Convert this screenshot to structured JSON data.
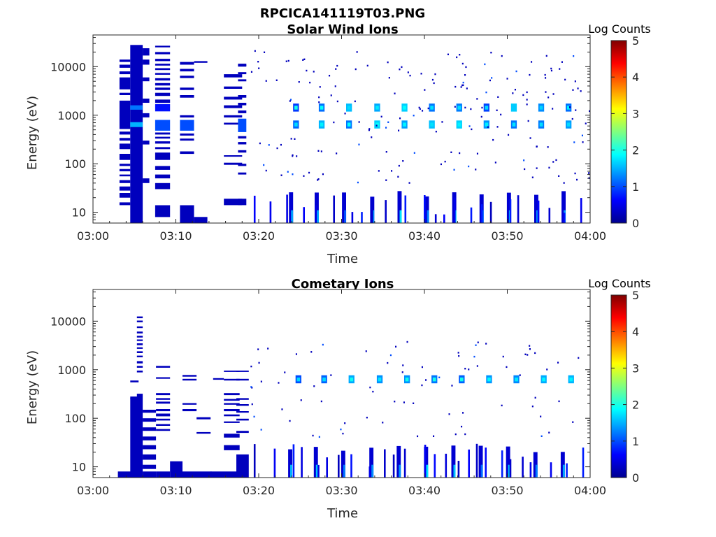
{
  "figure_title": "RPCICA141119T03.PNG",
  "chart_data": [
    {
      "type": "heatmap",
      "title": "Solar Wind Ions",
      "xlabel": "Time",
      "ylabel": "Energy (eV)",
      "xticks": [
        "03:00",
        "03:10",
        "03:20",
        "03:30",
        "03:40",
        "03:50",
        "04:00"
      ],
      "xlim_minutes": [
        0,
        60
      ],
      "yscale": "log",
      "ylim": [
        6,
        45000
      ],
      "yticks": [
        {
          "value": 10,
          "label": "10"
        },
        {
          "value": 100,
          "label": "100"
        },
        {
          "value": 1000,
          "label": "1000"
        },
        {
          "value": 10000,
          "label": "10000"
        }
      ],
      "colorbar": {
        "label": "Log Counts",
        "range": [
          0,
          5
        ],
        "ticks": [
          "0",
          "1",
          "2",
          "3",
          "4",
          "5"
        ],
        "colormap": "jet"
      },
      "cells": [
        [
          3.2,
          4.5,
          14,
          16,
          0.3
        ],
        [
          3.2,
          4.5,
          20,
          25,
          0.3
        ],
        [
          3.2,
          4.5,
          28,
          34,
          0.3
        ],
        [
          3.2,
          4.5,
          40,
          46,
          0.3
        ],
        [
          3.2,
          4.5,
          55,
          60,
          0.3
        ],
        [
          3.2,
          4.5,
          70,
          78,
          0.3
        ],
        [
          3.2,
          4.5,
          90,
          100,
          0.3
        ],
        [
          3.2,
          4.5,
          120,
          160,
          0.3
        ],
        [
          3.2,
          4.5,
          200,
          260,
          0.3
        ],
        [
          3.2,
          4.5,
          300,
          340,
          0.3
        ],
        [
          3.2,
          4.5,
          400,
          460,
          0.3
        ],
        [
          3.2,
          4.5,
          520,
          2000,
          0.3
        ],
        [
          3.2,
          4.5,
          2600,
          2900,
          0.3
        ],
        [
          3.2,
          4.5,
          3400,
          6000,
          0.3
        ],
        [
          3.2,
          4.5,
          7000,
          8000,
          0.3
        ],
        [
          3.2,
          4.5,
          9500,
          11000,
          0.3
        ],
        [
          3.2,
          4.5,
          12500,
          14000,
          0.3
        ],
        [
          4.5,
          6.0,
          6,
          28000,
          0.3
        ],
        [
          4.5,
          6.0,
          1300,
          1600,
          1.2
        ],
        [
          4.5,
          6.0,
          570,
          720,
          1.5
        ],
        [
          6.0,
          6.8,
          17000,
          24000,
          0.3
        ],
        [
          6.0,
          6.8,
          11000,
          14000,
          0.3
        ],
        [
          6.0,
          6.8,
          5000,
          6000,
          0.3
        ],
        [
          6.0,
          6.8,
          1800,
          2200,
          0.3
        ],
        [
          6.0,
          6.8,
          900,
          1100,
          0.3
        ],
        [
          6.0,
          6.8,
          250,
          300,
          0.3
        ],
        [
          6.0,
          6.8,
          40,
          50,
          0.3
        ],
        [
          7.5,
          9.3,
          25000,
          27000,
          0.3
        ],
        [
          7.5,
          9.3,
          18000,
          20000,
          0.3
        ],
        [
          7.5,
          9.3,
          13000,
          14500,
          0.3
        ],
        [
          7.5,
          9.3,
          10500,
          11500,
          0.3
        ],
        [
          7.5,
          9.3,
          8500,
          9300,
          0.3
        ],
        [
          7.5,
          9.3,
          6800,
          7400,
          0.3
        ],
        [
          7.5,
          9.3,
          5200,
          5800,
          0.3
        ],
        [
          7.5,
          9.3,
          4100,
          4600,
          0.3
        ],
        [
          7.5,
          9.3,
          3300,
          3700,
          0.3
        ],
        [
          7.5,
          9.3,
          2500,
          2900,
          0.3
        ],
        [
          7.5,
          9.3,
          1800,
          2100,
          0.3
        ],
        [
          7.5,
          9.3,
          1200,
          1700,
          0.7
        ],
        [
          7.5,
          9.3,
          480,
          800,
          1.0
        ],
        [
          7.5,
          9.3,
          400,
          440,
          0.3
        ],
        [
          7.5,
          9.3,
          330,
          360,
          0.3
        ],
        [
          7.5,
          9.3,
          260,
          290,
          0.3
        ],
        [
          7.5,
          9.3,
          200,
          220,
          0.3
        ],
        [
          7.5,
          9.3,
          120,
          170,
          0.3
        ],
        [
          7.5,
          9.3,
          75,
          90,
          0.3
        ],
        [
          7.5,
          9.3,
          50,
          60,
          0.3
        ],
        [
          7.5,
          9.3,
          30,
          40,
          0.3
        ],
        [
          7.5,
          9.3,
          8,
          14,
          0.3
        ],
        [
          10.5,
          12.2,
          11000,
          12500,
          0.3
        ],
        [
          10.5,
          12.2,
          8000,
          9000,
          0.3
        ],
        [
          10.5,
          12.2,
          5800,
          6500,
          0.3
        ],
        [
          10.5,
          12.2,
          3300,
          3700,
          0.3
        ],
        [
          10.5,
          12.2,
          2300,
          2600,
          0.3
        ],
        [
          10.5,
          12.2,
          900,
          1000,
          0.3
        ],
        [
          10.5,
          12.2,
          480,
          800,
          1.0
        ],
        [
          10.5,
          12.2,
          380,
          420,
          0.3
        ],
        [
          10.5,
          12.2,
          300,
          330,
          0.3
        ],
        [
          10.5,
          12.2,
          160,
          180,
          0.3
        ],
        [
          10.5,
          12.2,
          6,
          14,
          0.3
        ],
        [
          12.2,
          13.8,
          12000,
          13000,
          0.3
        ],
        [
          12.2,
          13.8,
          6,
          8,
          0.3
        ],
        [
          15.8,
          18.0,
          6000,
          7000,
          0.3
        ],
        [
          15.8,
          18.0,
          3500,
          3900,
          0.3
        ],
        [
          15.8,
          18.0,
          2100,
          2400,
          0.3
        ],
        [
          15.8,
          18.0,
          1400,
          1600,
          0.3
        ],
        [
          15.8,
          18.0,
          900,
          1000,
          0.3
        ],
        [
          15.8,
          18.0,
          640,
          700,
          0.3
        ],
        [
          15.8,
          18.0,
          140,
          150,
          0.3
        ],
        [
          15.8,
          18.0,
          95,
          105,
          0.3
        ],
        [
          15.8,
          18.0,
          14,
          19,
          0.3
        ],
        [
          17.5,
          18.5,
          10000,
          11500,
          0.3
        ],
        [
          17.5,
          18.5,
          7000,
          7700,
          0.3
        ],
        [
          17.5,
          18.5,
          5000,
          5500,
          0.3
        ],
        [
          17.5,
          18.5,
          2300,
          2600,
          0.3
        ],
        [
          17.5,
          18.5,
          1600,
          1800,
          0.3
        ],
        [
          17.5,
          18.5,
          1100,
          1250,
          0.3
        ],
        [
          17.5,
          18.5,
          450,
          850,
          1.0
        ],
        [
          17.5,
          18.5,
          330,
          370,
          0.3
        ],
        [
          17.5,
          18.5,
          250,
          280,
          0.3
        ],
        [
          17.5,
          18.5,
          170,
          190,
          0.3
        ],
        [
          17.5,
          18.5,
          90,
          100,
          0.3
        ],
        [
          17.5,
          18.5,
          60,
          66,
          0.3
        ],
        [
          17.5,
          18.5,
          14,
          19,
          0.3
        ],
        [
          17.5,
          18.5,
          10500,
          11000,
          0.3
        ]
      ],
      "bursts_minutes": [
        24.5,
        27.6,
        30.9,
        34.3,
        37.6,
        40.9,
        44.2,
        47.5,
        50.8,
        54.1,
        57.4
      ],
      "burst_energies_ev": [
        1450,
        650
      ]
    },
    {
      "type": "heatmap",
      "title": "Cometary Ions",
      "xlabel": "Time",
      "ylabel": "Energy (eV)",
      "xticks": [
        "03:00",
        "03:10",
        "03:20",
        "03:30",
        "03:40",
        "03:50",
        "04:00"
      ],
      "xlim_minutes": [
        0,
        60
      ],
      "yscale": "log",
      "ylim": [
        6,
        45000
      ],
      "yticks": [
        {
          "value": 10,
          "label": "10"
        },
        {
          "value": 100,
          "label": "100"
        },
        {
          "value": 1000,
          "label": "1000"
        },
        {
          "value": 10000,
          "label": "10000"
        }
      ],
      "colorbar": {
        "label": "Log Counts",
        "range": [
          0,
          5
        ],
        "ticks": [
          "0",
          "1",
          "2",
          "3",
          "4",
          "5"
        ],
        "colormap": "jet"
      },
      "cells": [
        [
          3.0,
          4.6,
          6,
          8,
          0.3
        ],
        [
          4.5,
          5.5,
          550,
          600,
          0.3
        ],
        [
          4.5,
          5.5,
          250,
          280,
          0.3
        ],
        [
          4.5,
          5.5,
          6,
          260,
          0.3
        ],
        [
          5.3,
          6.0,
          11500,
          12500,
          0.3
        ],
        [
          5.3,
          6.0,
          9500,
          10300,
          0.3
        ],
        [
          5.3,
          6.0,
          7200,
          7800,
          0.3
        ],
        [
          5.3,
          6.0,
          5600,
          6100,
          0.3
        ],
        [
          5.3,
          6.0,
          4600,
          5000,
          0.3
        ],
        [
          5.3,
          6.0,
          3900,
          4200,
          0.3
        ],
        [
          5.3,
          6.0,
          3200,
          3500,
          0.3
        ],
        [
          5.3,
          6.0,
          2700,
          2900,
          0.3
        ],
        [
          5.3,
          6.0,
          2200,
          2400,
          0.3
        ],
        [
          5.3,
          6.0,
          1800,
          1950,
          0.3
        ],
        [
          5.3,
          6.0,
          1350,
          1500,
          0.3
        ],
        [
          5.3,
          6.0,
          1100,
          1200,
          0.3
        ],
        [
          5.3,
          6.0,
          880,
          960,
          0.3
        ],
        [
          5.3,
          6.0,
          6,
          320,
          0.3
        ],
        [
          6.0,
          7.6,
          130,
          150,
          0.3
        ],
        [
          6.0,
          7.6,
          85,
          100,
          0.3
        ],
        [
          6.0,
          7.6,
          55,
          65,
          0.3
        ],
        [
          6.0,
          7.6,
          35,
          42,
          0.3
        ],
        [
          6.0,
          7.6,
          23,
          28,
          0.3
        ],
        [
          6.0,
          7.6,
          14,
          18,
          0.3
        ],
        [
          6.0,
          7.6,
          6,
          8,
          0.3
        ],
        [
          6.0,
          7.6,
          9,
          11,
          0.3
        ],
        [
          7.6,
          9.3,
          1100,
          1200,
          0.3
        ],
        [
          7.6,
          9.3,
          650,
          700,
          0.3
        ],
        [
          7.6,
          9.3,
          300,
          330,
          0.3
        ],
        [
          7.6,
          9.3,
          240,
          260,
          0.3
        ],
        [
          7.6,
          9.3,
          200,
          220,
          0.3
        ],
        [
          7.6,
          9.3,
          140,
          155,
          0.3
        ],
        [
          7.6,
          9.3,
          110,
          125,
          0.3
        ],
        [
          7.6,
          9.3,
          90,
          98,
          0.3
        ],
        [
          7.6,
          9.3,
          70,
          76,
          0.3
        ],
        [
          7.6,
          9.3,
          55,
          60,
          0.3
        ],
        [
          7.6,
          9.3,
          6,
          8,
          0.3
        ],
        [
          9.3,
          10.8,
          6,
          13,
          0.3
        ],
        [
          10.8,
          14.3,
          6,
          8,
          0.3
        ],
        [
          10.8,
          12.5,
          720,
          780,
          0.3
        ],
        [
          10.8,
          12.5,
          600,
          650,
          0.3
        ],
        [
          10.8,
          12.5,
          190,
          205,
          0.3
        ],
        [
          10.8,
          12.5,
          140,
          155,
          0.3
        ],
        [
          12.5,
          14.2,
          95,
          105,
          0.3
        ],
        [
          12.5,
          14.2,
          48,
          52,
          0.3
        ],
        [
          14.5,
          15.8,
          620,
          670,
          0.3
        ],
        [
          14.2,
          17.3,
          6,
          8,
          0.3
        ],
        [
          15.8,
          17.7,
          900,
          960,
          0.3
        ],
        [
          15.8,
          17.7,
          600,
          650,
          0.3
        ],
        [
          15.8,
          17.7,
          300,
          330,
          0.3
        ],
        [
          15.8,
          17.7,
          230,
          250,
          0.3
        ],
        [
          15.8,
          17.7,
          190,
          205,
          0.3
        ],
        [
          15.8,
          17.7,
          140,
          155,
          0.3
        ],
        [
          15.8,
          17.7,
          110,
          120,
          0.3
        ],
        [
          15.8,
          17.7,
          80,
          86,
          0.3
        ],
        [
          15.8,
          17.7,
          40,
          48,
          0.3
        ],
        [
          15.8,
          17.7,
          22,
          28,
          0.3
        ],
        [
          17.3,
          18.8,
          900,
          960,
          0.3
        ],
        [
          17.3,
          18.8,
          600,
          650,
          0.3
        ],
        [
          17.3,
          18.8,
          240,
          260,
          0.3
        ],
        [
          17.3,
          18.8,
          180,
          195,
          0.3
        ],
        [
          17.3,
          18.8,
          130,
          140,
          0.3
        ],
        [
          17.3,
          18.8,
          90,
          98,
          0.3
        ],
        [
          17.3,
          18.8,
          50,
          55,
          0.3
        ],
        [
          17.3,
          18.8,
          6,
          18,
          0.3
        ]
      ],
      "bursts_minutes": [
        24.8,
        27.9,
        31.2,
        34.6,
        37.9,
        41.2,
        44.5,
        47.8,
        51.1,
        54.4,
        57.7
      ],
      "burst_energies_ev": [
        640
      ]
    }
  ]
}
